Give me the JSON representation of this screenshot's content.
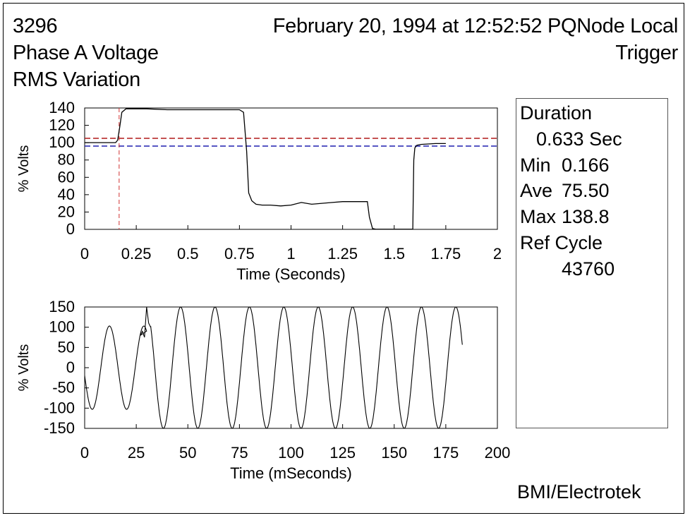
{
  "header": {
    "id": "3296",
    "title_line1": "Phase A Voltage",
    "title_line2": "RMS Variation",
    "timestamp": "February 20, 1994 at 12:52:52 PQNode Local",
    "trigger": "Trigger"
  },
  "summary": {
    "duration_label": "Duration",
    "duration_value": "0.633 Sec",
    "min_label": "Min",
    "min_value": "0.166",
    "ave_label": "Ave",
    "ave_value": "75.50",
    "max_label": "Max",
    "max_value": "138.8",
    "ref_label": "Ref Cycle",
    "ref_value": "43760"
  },
  "brand": "BMI/Electrotek",
  "colors": {
    "trace": "#000000",
    "upper_threshold": "#b01818",
    "lower_threshold": "#1f1fb0",
    "trigger_marker": "#d03030"
  },
  "chart_data": [
    {
      "type": "line",
      "xlabel": "Time (Seconds)",
      "ylabel": "% Volts",
      "xlim": [
        0,
        2
      ],
      "ylim": [
        0,
        140
      ],
      "x_ticks": [
        "0",
        "0.25",
        "0.5",
        "0.75",
        "1",
        "1.25",
        "1.5",
        "1.75",
        "2"
      ],
      "y_ticks": [
        "140",
        "120",
        "100",
        "80",
        "60",
        "40",
        "20",
        "0"
      ],
      "series": [
        {
          "x": [
            0,
            0.15,
            0.16,
            0.17,
            0.18,
            0.2,
            0.3,
            0.4,
            0.5,
            0.6,
            0.7,
            0.75,
            0.77,
            0.785,
            0.795,
            0.81,
            0.83,
            0.86,
            0.9,
            0.95,
            1.0,
            1.05,
            1.1,
            1.15,
            1.2,
            1.25,
            1.3,
            1.35,
            1.37,
            1.38,
            1.395,
            1.41,
            1.5,
            1.59,
            1.595,
            1.6,
            1.61,
            1.63,
            1.7,
            1.75
          ],
          "y": [
            100,
            100,
            103,
            118,
            135,
            139,
            139,
            138,
            138,
            138,
            138,
            138,
            135,
            90,
            42,
            33,
            29,
            28,
            28,
            27,
            28,
            31,
            29,
            30,
            31,
            32,
            32,
            32,
            32,
            14,
            1,
            0.2,
            0.2,
            0.2,
            80,
            94,
            97,
            98,
            99,
            99
          ]
        }
      ],
      "reference_lines": [
        {
          "y": 105,
          "color": "#b01818",
          "style": "dashed"
        },
        {
          "y": 96,
          "color": "#1f1fb0",
          "style": "dashed"
        }
      ],
      "trigger_x": 0.167
    },
    {
      "type": "line",
      "xlabel": "Time (mSeconds)",
      "ylabel": "% Volts",
      "xlim": [
        0,
        200
      ],
      "ylim": [
        -150,
        150
      ],
      "x_ticks": [
        "0",
        "25",
        "50",
        "75",
        "100",
        "125",
        "150",
        "175",
        "200"
      ],
      "y_ticks": [
        "150",
        "100",
        "50",
        "0",
        "-50",
        "-100",
        "-150"
      ],
      "waveform": {
        "segment1": {
          "t_start": 0,
          "t_end": 30,
          "amplitude": 103,
          "phase_peak_ms": 12
        },
        "disturbance_points": [
          [
            27,
            80
          ],
          [
            28,
            90
          ],
          [
            29,
            75
          ],
          [
            30,
            150
          ],
          [
            31,
            110
          ],
          [
            32,
            100
          ]
        ],
        "segment2": {
          "t_start": 32,
          "t_end": 183,
          "amplitude": 150,
          "phase_peak_ms": 46.5
        },
        "period_ms": 16.67
      }
    }
  ]
}
